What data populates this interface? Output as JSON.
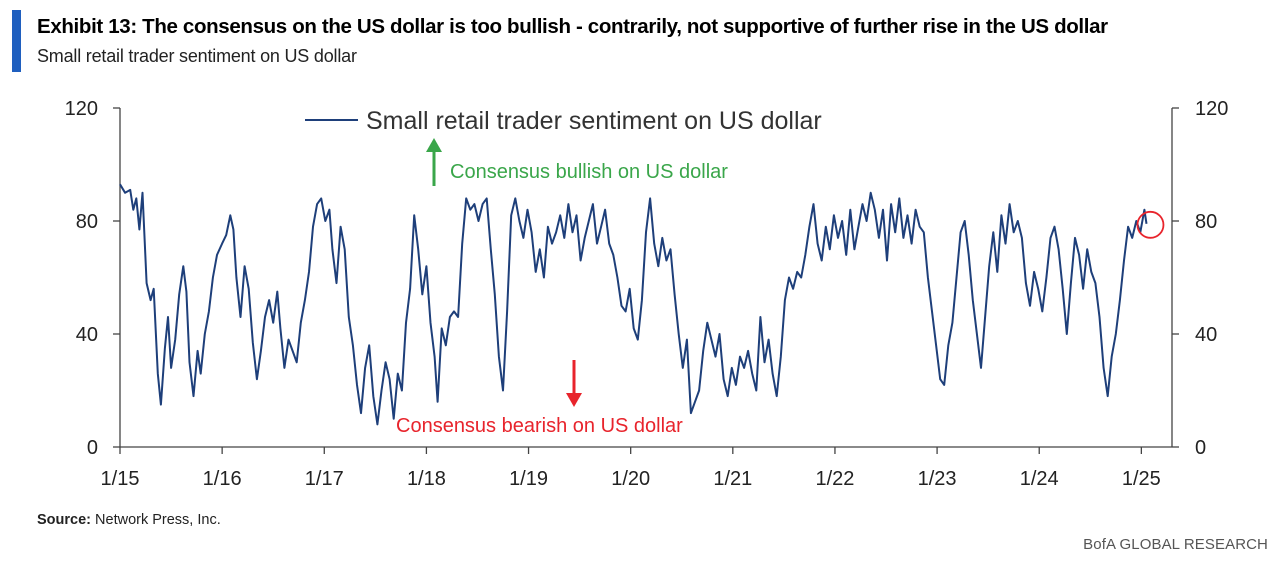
{
  "exhibit": {
    "title": "Exhibit 13:  The consensus on the US dollar is too bullish - contrarily, not supportive of further rise in the US dollar",
    "subtitle": "Small retail trader sentiment on US dollar"
  },
  "footer": {
    "source_label": "Source:",
    "source_text": "Network Press, Inc.",
    "brand": "BofA GLOBAL RESEARCH"
  },
  "colors": {
    "accent": "#1f5fbf",
    "series": "#1e3f7a",
    "bullish": "#3aa64a",
    "bearish": "#e8242c"
  },
  "annotations": {
    "bullish": "Consensus bullish on US dollar",
    "bearish": "Consensus bearish on US dollar"
  },
  "chart_data": {
    "type": "line",
    "title": "",
    "xlabel": "",
    "ylabel": "",
    "ylim": [
      0,
      120
    ],
    "y2lim": [
      0,
      120
    ],
    "yticks": [
      0,
      40,
      80,
      120
    ],
    "xlim": [
      2015.0,
      2025.3
    ],
    "xticks": [
      {
        "label": "1/15",
        "x": 2015.0
      },
      {
        "label": "1/16",
        "x": 2016.0
      },
      {
        "label": "1/17",
        "x": 2017.0
      },
      {
        "label": "1/18",
        "x": 2018.0
      },
      {
        "label": "1/19",
        "x": 2019.0
      },
      {
        "label": "1/20",
        "x": 2020.0
      },
      {
        "label": "1/21",
        "x": 2021.0
      },
      {
        "label": "1/22",
        "x": 2022.0
      },
      {
        "label": "1/23",
        "x": 2023.0
      },
      {
        "label": "1/24",
        "x": 2024.0
      },
      {
        "label": "1/25",
        "x": 2025.0
      }
    ],
    "grid": false,
    "legend_position": "top-left",
    "highlight": {
      "x": 2025.05,
      "y": 79
    },
    "series": [
      {
        "name": "Small retail trader sentiment on US dollar",
        "points": [
          [
            2015.0,
            93
          ],
          [
            2015.05,
            90
          ],
          [
            2015.1,
            91
          ],
          [
            2015.13,
            84
          ],
          [
            2015.16,
            88
          ],
          [
            2015.19,
            77
          ],
          [
            2015.22,
            90
          ],
          [
            2015.26,
            58
          ],
          [
            2015.3,
            52
          ],
          [
            2015.33,
            56
          ],
          [
            2015.37,
            26
          ],
          [
            2015.4,
            15
          ],
          [
            2015.44,
            35
          ],
          [
            2015.47,
            46
          ],
          [
            2015.5,
            28
          ],
          [
            2015.54,
            38
          ],
          [
            2015.58,
            54
          ],
          [
            2015.62,
            64
          ],
          [
            2015.65,
            55
          ],
          [
            2015.68,
            30
          ],
          [
            2015.72,
            18
          ],
          [
            2015.76,
            34
          ],
          [
            2015.79,
            26
          ],
          [
            2015.83,
            40
          ],
          [
            2015.87,
            48
          ],
          [
            2015.91,
            60
          ],
          [
            2015.95,
            68
          ],
          [
            2016.0,
            72
          ],
          [
            2016.04,
            75
          ],
          [
            2016.08,
            82
          ],
          [
            2016.11,
            77
          ],
          [
            2016.14,
            60
          ],
          [
            2016.18,
            46
          ],
          [
            2016.22,
            64
          ],
          [
            2016.26,
            56
          ],
          [
            2016.3,
            37
          ],
          [
            2016.34,
            24
          ],
          [
            2016.38,
            34
          ],
          [
            2016.42,
            46
          ],
          [
            2016.46,
            52
          ],
          [
            2016.5,
            44
          ],
          [
            2016.54,
            55
          ],
          [
            2016.57,
            42
          ],
          [
            2016.61,
            28
          ],
          [
            2016.65,
            38
          ],
          [
            2016.69,
            34
          ],
          [
            2016.73,
            30
          ],
          [
            2016.77,
            44
          ],
          [
            2016.81,
            52
          ],
          [
            2016.85,
            62
          ],
          [
            2016.89,
            78
          ],
          [
            2016.93,
            86
          ],
          [
            2016.97,
            88
          ],
          [
            2017.01,
            80
          ],
          [
            2017.05,
            84
          ],
          [
            2017.08,
            70
          ],
          [
            2017.12,
            58
          ],
          [
            2017.16,
            78
          ],
          [
            2017.2,
            70
          ],
          [
            2017.24,
            46
          ],
          [
            2017.28,
            36
          ],
          [
            2017.32,
            22
          ],
          [
            2017.36,
            12
          ],
          [
            2017.4,
            28
          ],
          [
            2017.44,
            36
          ],
          [
            2017.48,
            18
          ],
          [
            2017.52,
            8
          ],
          [
            2017.56,
            20
          ],
          [
            2017.6,
            30
          ],
          [
            2017.64,
            24
          ],
          [
            2017.68,
            10
          ],
          [
            2017.72,
            26
          ],
          [
            2017.76,
            20
          ],
          [
            2017.8,
            44
          ],
          [
            2017.84,
            56
          ],
          [
            2017.88,
            82
          ],
          [
            2017.92,
            70
          ],
          [
            2017.96,
            54
          ],
          [
            2018.0,
            64
          ],
          [
            2018.04,
            44
          ],
          [
            2018.08,
            32
          ],
          [
            2018.11,
            16
          ],
          [
            2018.15,
            42
          ],
          [
            2018.19,
            36
          ],
          [
            2018.23,
            46
          ],
          [
            2018.27,
            48
          ],
          [
            2018.31,
            46
          ],
          [
            2018.35,
            72
          ],
          [
            2018.39,
            88
          ],
          [
            2018.43,
            84
          ],
          [
            2018.47,
            86
          ],
          [
            2018.51,
            80
          ],
          [
            2018.55,
            86
          ],
          [
            2018.59,
            88
          ],
          [
            2018.63,
            70
          ],
          [
            2018.67,
            54
          ],
          [
            2018.71,
            32
          ],
          [
            2018.75,
            20
          ],
          [
            2018.79,
            48
          ],
          [
            2018.83,
            82
          ],
          [
            2018.87,
            88
          ],
          [
            2018.91,
            80
          ],
          [
            2018.95,
            74
          ],
          [
            2018.99,
            84
          ],
          [
            2019.03,
            76
          ],
          [
            2019.07,
            62
          ],
          [
            2019.11,
            70
          ],
          [
            2019.15,
            60
          ],
          [
            2019.19,
            78
          ],
          [
            2019.23,
            72
          ],
          [
            2019.27,
            76
          ],
          [
            2019.31,
            82
          ],
          [
            2019.35,
            74
          ],
          [
            2019.39,
            86
          ],
          [
            2019.43,
            76
          ],
          [
            2019.47,
            82
          ],
          [
            2019.51,
            66
          ],
          [
            2019.55,
            74
          ],
          [
            2019.59,
            80
          ],
          [
            2019.63,
            86
          ],
          [
            2019.67,
            72
          ],
          [
            2019.71,
            78
          ],
          [
            2019.75,
            84
          ],
          [
            2019.79,
            72
          ],
          [
            2019.83,
            68
          ],
          [
            2019.87,
            60
          ],
          [
            2019.91,
            50
          ],
          [
            2019.95,
            48
          ],
          [
            2019.99,
            56
          ],
          [
            2020.03,
            42
          ],
          [
            2020.07,
            38
          ],
          [
            2020.11,
            52
          ],
          [
            2020.15,
            76
          ],
          [
            2020.19,
            88
          ],
          [
            2020.23,
            72
          ],
          [
            2020.27,
            64
          ],
          [
            2020.31,
            74
          ],
          [
            2020.35,
            66
          ],
          [
            2020.39,
            70
          ],
          [
            2020.43,
            54
          ],
          [
            2020.47,
            40
          ],
          [
            2020.51,
            28
          ],
          [
            2020.55,
            38
          ],
          [
            2020.59,
            12
          ],
          [
            2020.63,
            16
          ],
          [
            2020.67,
            20
          ],
          [
            2020.71,
            34
          ],
          [
            2020.75,
            44
          ],
          [
            2020.79,
            38
          ],
          [
            2020.83,
            32
          ],
          [
            2020.87,
            40
          ],
          [
            2020.91,
            24
          ],
          [
            2020.95,
            18
          ],
          [
            2020.99,
            28
          ],
          [
            2021.03,
            22
          ],
          [
            2021.07,
            32
          ],
          [
            2021.11,
            28
          ],
          [
            2021.15,
            34
          ],
          [
            2021.19,
            26
          ],
          [
            2021.23,
            20
          ],
          [
            2021.27,
            46
          ],
          [
            2021.31,
            30
          ],
          [
            2021.35,
            38
          ],
          [
            2021.39,
            26
          ],
          [
            2021.43,
            18
          ],
          [
            2021.47,
            32
          ],
          [
            2021.51,
            52
          ],
          [
            2021.55,
            60
          ],
          [
            2021.59,
            56
          ],
          [
            2021.63,
            62
          ],
          [
            2021.67,
            60
          ],
          [
            2021.71,
            68
          ],
          [
            2021.75,
            78
          ],
          [
            2021.79,
            86
          ],
          [
            2021.83,
            72
          ],
          [
            2021.87,
            66
          ],
          [
            2021.91,
            78
          ],
          [
            2021.95,
            70
          ],
          [
            2021.99,
            82
          ],
          [
            2022.03,
            74
          ],
          [
            2022.07,
            80
          ],
          [
            2022.11,
            68
          ],
          [
            2022.15,
            84
          ],
          [
            2022.19,
            70
          ],
          [
            2022.23,
            78
          ],
          [
            2022.27,
            86
          ],
          [
            2022.31,
            80
          ],
          [
            2022.35,
            90
          ],
          [
            2022.39,
            84
          ],
          [
            2022.43,
            74
          ],
          [
            2022.47,
            84
          ],
          [
            2022.51,
            66
          ],
          [
            2022.55,
            86
          ],
          [
            2022.59,
            76
          ],
          [
            2022.63,
            88
          ],
          [
            2022.67,
            74
          ],
          [
            2022.71,
            82
          ],
          [
            2022.75,
            72
          ],
          [
            2022.79,
            84
          ],
          [
            2022.83,
            78
          ],
          [
            2022.87,
            76
          ],
          [
            2022.91,
            60
          ],
          [
            2022.95,
            48
          ],
          [
            2022.99,
            36
          ],
          [
            2023.03,
            24
          ],
          [
            2023.07,
            22
          ],
          [
            2023.11,
            36
          ],
          [
            2023.15,
            44
          ],
          [
            2023.19,
            60
          ],
          [
            2023.23,
            76
          ],
          [
            2023.27,
            80
          ],
          [
            2023.31,
            68
          ],
          [
            2023.35,
            52
          ],
          [
            2023.39,
            40
          ],
          [
            2023.43,
            28
          ],
          [
            2023.47,
            46
          ],
          [
            2023.51,
            64
          ],
          [
            2023.55,
            76
          ],
          [
            2023.59,
            62
          ],
          [
            2023.63,
            82
          ],
          [
            2023.67,
            72
          ],
          [
            2023.71,
            86
          ],
          [
            2023.75,
            76
          ],
          [
            2023.79,
            80
          ],
          [
            2023.83,
            74
          ],
          [
            2023.87,
            58
          ],
          [
            2023.91,
            50
          ],
          [
            2023.95,
            62
          ],
          [
            2023.99,
            56
          ],
          [
            2024.03,
            48
          ],
          [
            2024.07,
            60
          ],
          [
            2024.11,
            74
          ],
          [
            2024.15,
            78
          ],
          [
            2024.19,
            70
          ],
          [
            2024.23,
            56
          ],
          [
            2024.27,
            40
          ],
          [
            2024.31,
            58
          ],
          [
            2024.35,
            74
          ],
          [
            2024.39,
            68
          ],
          [
            2024.43,
            56
          ],
          [
            2024.47,
            70
          ],
          [
            2024.51,
            62
          ],
          [
            2024.55,
            58
          ],
          [
            2024.59,
            46
          ],
          [
            2024.63,
            28
          ],
          [
            2024.67,
            18
          ],
          [
            2024.71,
            32
          ],
          [
            2024.75,
            40
          ],
          [
            2024.79,
            52
          ],
          [
            2024.83,
            66
          ],
          [
            2024.87,
            78
          ],
          [
            2024.91,
            74
          ],
          [
            2024.95,
            80
          ],
          [
            2024.99,
            76
          ],
          [
            2025.03,
            84
          ],
          [
            2025.05,
            79
          ]
        ]
      }
    ]
  }
}
